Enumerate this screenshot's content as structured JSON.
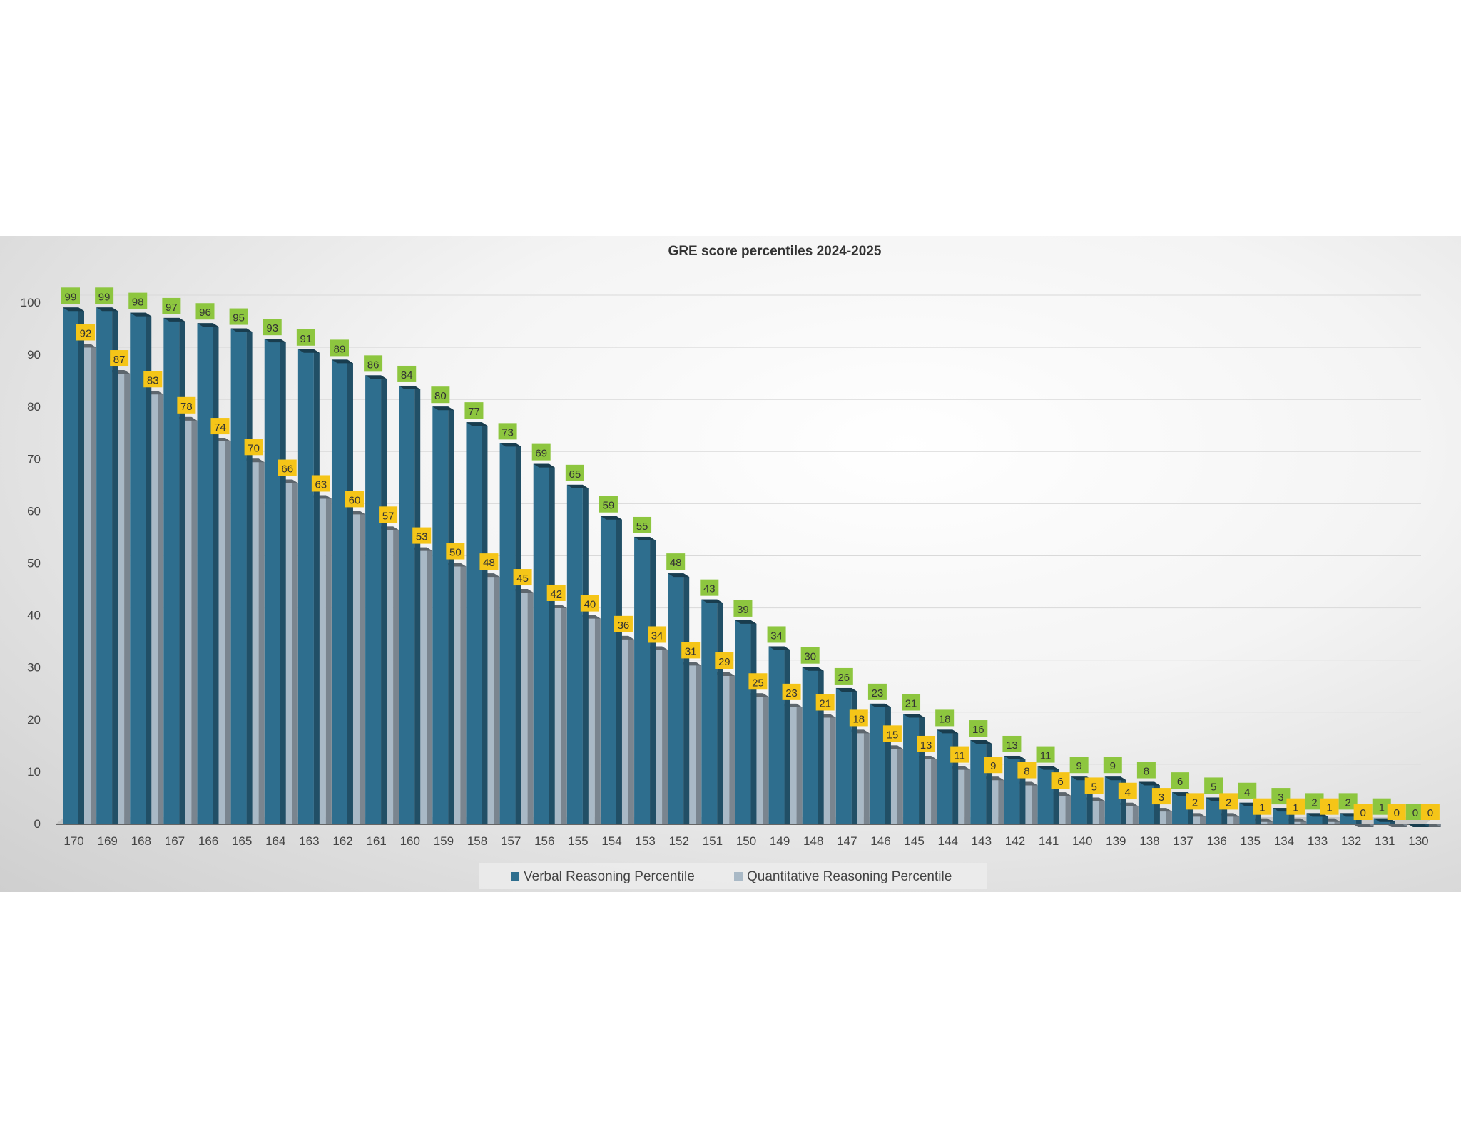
{
  "chart_data": {
    "type": "bar",
    "title": "GRE score percentiles 2024-2025",
    "xlabel": "",
    "ylabel": "",
    "ylim": [
      0,
      100
    ],
    "yticks": [
      0,
      10,
      20,
      30,
      40,
      50,
      60,
      70,
      80,
      90,
      100
    ],
    "grid": true,
    "legend_position": "bottom",
    "categories": [
      "170",
      "169",
      "168",
      "167",
      "166",
      "165",
      "164",
      "163",
      "162",
      "161",
      "160",
      "159",
      "158",
      "157",
      "156",
      "155",
      "154",
      "153",
      "152",
      "151",
      "150",
      "149",
      "148",
      "147",
      "146",
      "145",
      "144",
      "143",
      "142",
      "141",
      "140",
      "139",
      "138",
      "137",
      "136",
      "135",
      "134",
      "133",
      "132",
      "131",
      "130"
    ],
    "series": [
      {
        "name": "Verbal Reasoning Percentile",
        "color": "#2e6e8e",
        "label_color": "#8dc63f",
        "values": [
          99,
          99,
          98,
          97,
          96,
          95,
          93,
          91,
          89,
          86,
          84,
          80,
          77,
          73,
          69,
          65,
          59,
          55,
          48,
          43,
          39,
          34,
          30,
          26,
          23,
          21,
          18,
          16,
          13,
          11,
          9,
          9,
          8,
          6,
          5,
          4,
          3,
          2,
          2,
          1,
          0
        ]
      },
      {
        "name": "Quantitative Reasoning Percentile",
        "color": "#a9b9c6",
        "label_color": "#f5c518",
        "values": [
          92,
          87,
          83,
          78,
          74,
          70,
          66,
          63,
          60,
          57,
          53,
          50,
          48,
          45,
          42,
          40,
          36,
          34,
          31,
          29,
          25,
          23,
          21,
          18,
          15,
          13,
          11,
          9,
          8,
          6,
          5,
          4,
          3,
          2,
          2,
          1,
          1,
          1,
          0,
          0,
          0
        ]
      }
    ]
  }
}
